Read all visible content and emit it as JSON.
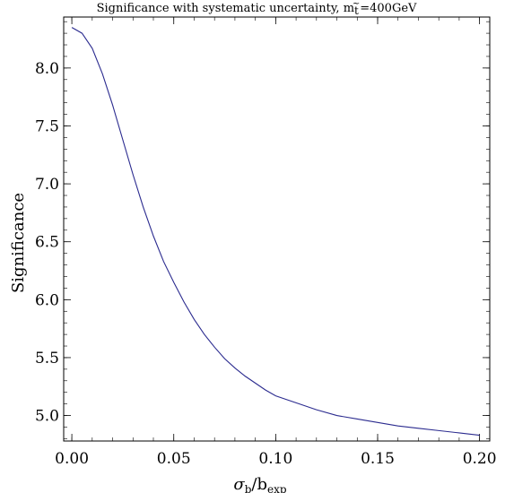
{
  "chart_data": {
    "type": "line",
    "title": {
      "prefix": "Significance with systematic uncertainty, m",
      "sub": "t",
      "accent": "~",
      "suffix": "=400GeV"
    },
    "xlabel": {
      "sigma": "σ",
      "sub1": "b",
      "mid": "/b",
      "sub2": "exp"
    },
    "ylabel": "Significance",
    "xlim": [
      -0.004,
      0.205
    ],
    "ylim": [
      4.78,
      8.44
    ],
    "x_ticks": [
      {
        "value": 0.0,
        "label": "0.00"
      },
      {
        "value": 0.05,
        "label": "0.05"
      },
      {
        "value": 0.1,
        "label": "0.10"
      },
      {
        "value": 0.15,
        "label": "0.15"
      },
      {
        "value": 0.2,
        "label": "0.20"
      }
    ],
    "y_ticks": [
      {
        "value": 5.0,
        "label": "5.0"
      },
      {
        "value": 5.5,
        "label": "5.5"
      },
      {
        "value": 6.0,
        "label": "6.0"
      },
      {
        "value": 6.5,
        "label": "6.5"
      },
      {
        "value": 7.0,
        "label": "7.0"
      },
      {
        "value": 7.5,
        "label": "7.5"
      },
      {
        "value": 8.0,
        "label": "8.0"
      }
    ],
    "x_minor_step": 0.01,
    "y_minor_step": 0.1,
    "line_color": "#2b2b8f",
    "series": [
      {
        "x": [
          0.0,
          0.005,
          0.01,
          0.015,
          0.02,
          0.025,
          0.03,
          0.035,
          0.04,
          0.045,
          0.05,
          0.055,
          0.06,
          0.065,
          0.07,
          0.075,
          0.08,
          0.085,
          0.09,
          0.095,
          0.1,
          0.11,
          0.12,
          0.13,
          0.14,
          0.15,
          0.16,
          0.17,
          0.18,
          0.19,
          0.2
        ],
        "y": [
          8.35,
          8.3,
          8.17,
          7.95,
          7.68,
          7.38,
          7.08,
          6.8,
          6.55,
          6.33,
          6.15,
          5.98,
          5.83,
          5.7,
          5.59,
          5.49,
          5.41,
          5.34,
          5.28,
          5.22,
          5.17,
          5.11,
          5.05,
          5.0,
          4.97,
          4.94,
          4.91,
          4.89,
          4.87,
          4.85,
          4.83
        ]
      }
    ]
  }
}
